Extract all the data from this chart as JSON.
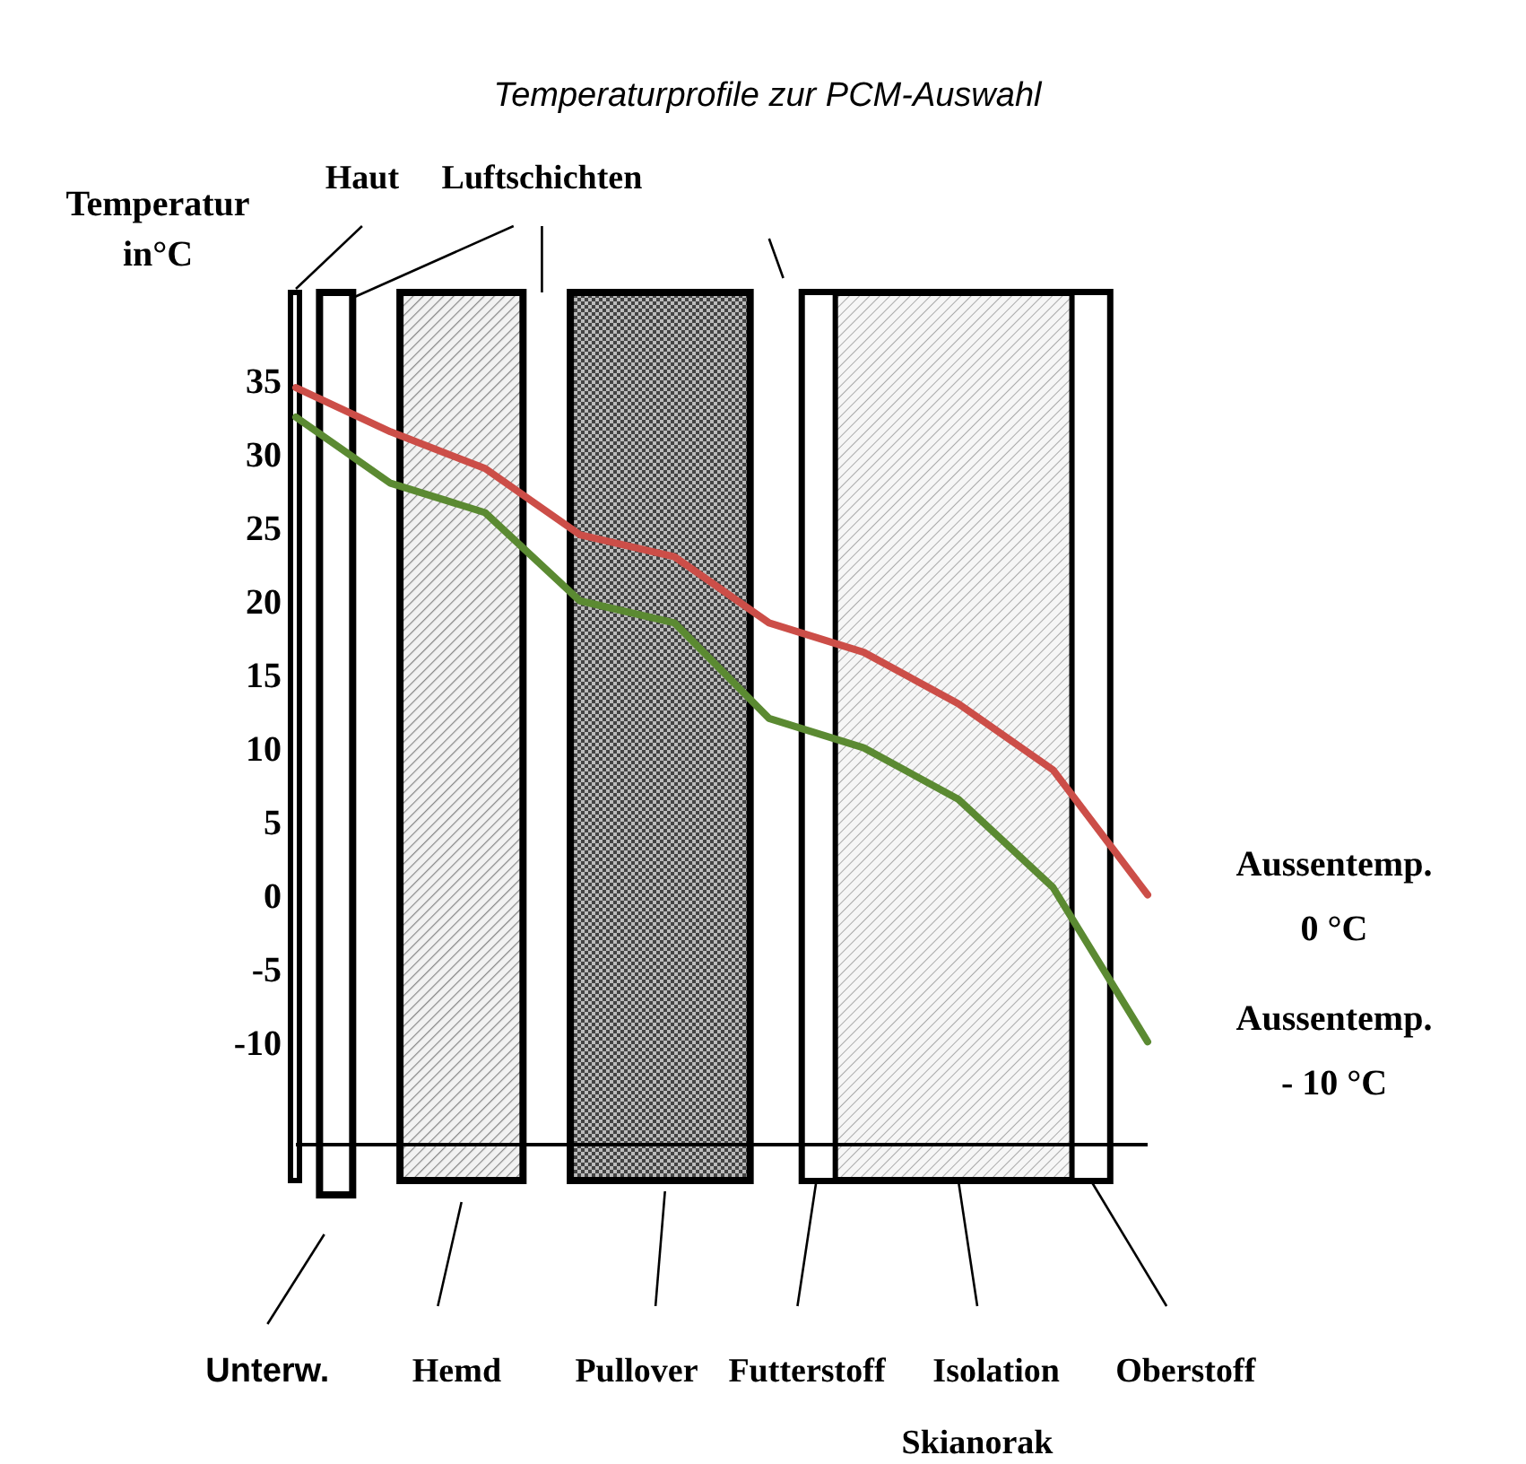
{
  "chart_data": {
    "type": "line",
    "title": "Temperaturprofile zur PCM-Auswahl",
    "ylabel": "Temperatur in°C",
    "categories": [
      null,
      null,
      null,
      null,
      null,
      null,
      null,
      null,
      null,
      null
    ],
    "series": [
      {
        "name": "Aussentemp. 0 °C",
        "color": "#cc4e48",
        "values": [
          34.5,
          31.5,
          29,
          24.5,
          23,
          18.5,
          16.5,
          13,
          8.5,
          0
        ]
      },
      {
        "name": "Aussentemp. - 10 °C",
        "color": "#5b8a32",
        "values": [
          32.5,
          28,
          26,
          20,
          18.5,
          12,
          10,
          6.5,
          0.5,
          -10
        ]
      }
    ],
    "ylim": [
      -17,
      35
    ],
    "yticks": [
      35,
      30,
      25,
      20,
      15,
      10,
      5,
      0,
      -5,
      -10
    ],
    "grid": false,
    "legend": false,
    "marker": "none",
    "line_style": "solid",
    "tick_labels": "y",
    "annotations": [
      "Haut",
      "Luftschichten",
      "Unterw.",
      "Hemd",
      "Pullover",
      "Futterstoff",
      "Isolation",
      "Oberstoff",
      "Skianorak"
    ]
  }
}
